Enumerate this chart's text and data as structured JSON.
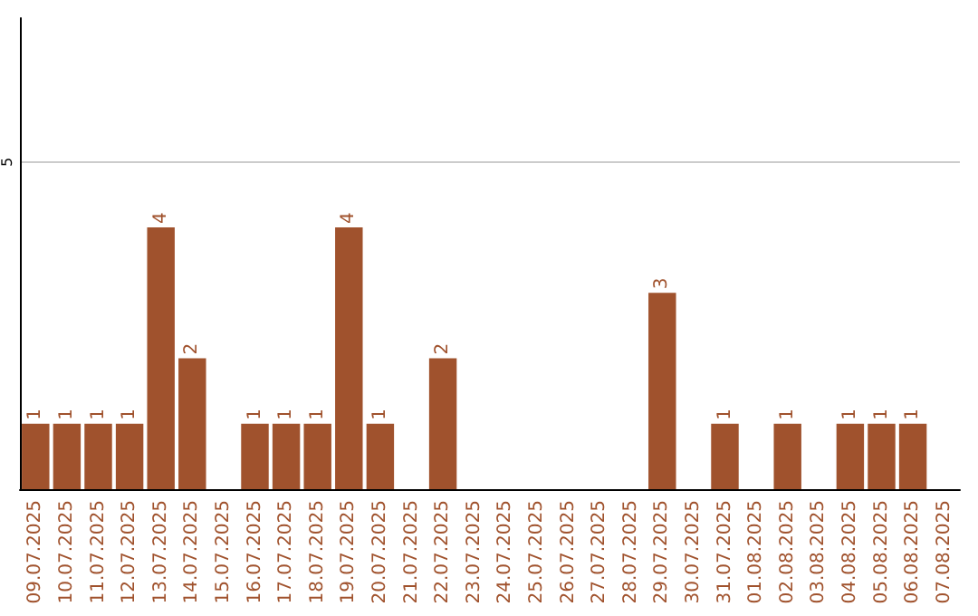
{
  "chart_data": {
    "type": "bar",
    "categories": [
      "09.07.2025",
      "10.07.2025",
      "11.07.2025",
      "12.07.2025",
      "13.07.2025",
      "14.07.2025",
      "15.07.2025",
      "16.07.2025",
      "17.07.2025",
      "18.07.2025",
      "19.07.2025",
      "20.07.2025",
      "21.07.2025",
      "22.07.2025",
      "23.07.2025",
      "24.07.2025",
      "25.07.2025",
      "26.07.2025",
      "27.07.2025",
      "28.07.2025",
      "29.07.2025",
      "30.07.2025",
      "31.07.2025",
      "01.08.2025",
      "02.08.2025",
      "03.08.2025",
      "04.08.2025",
      "05.08.2025",
      "06.08.2025",
      "07.08.2025"
    ],
    "values": [
      1,
      1,
      1,
      1,
      4,
      2,
      null,
      1,
      1,
      1,
      4,
      1,
      null,
      2,
      null,
      null,
      null,
      null,
      null,
      null,
      3,
      null,
      1,
      null,
      1,
      null,
      1,
      1,
      1,
      null
    ],
    "color": "#a0522d",
    "ylim": [
      0,
      7.2
    ],
    "yticks": [
      5
    ],
    "grid": "y",
    "data_labels": true
  }
}
